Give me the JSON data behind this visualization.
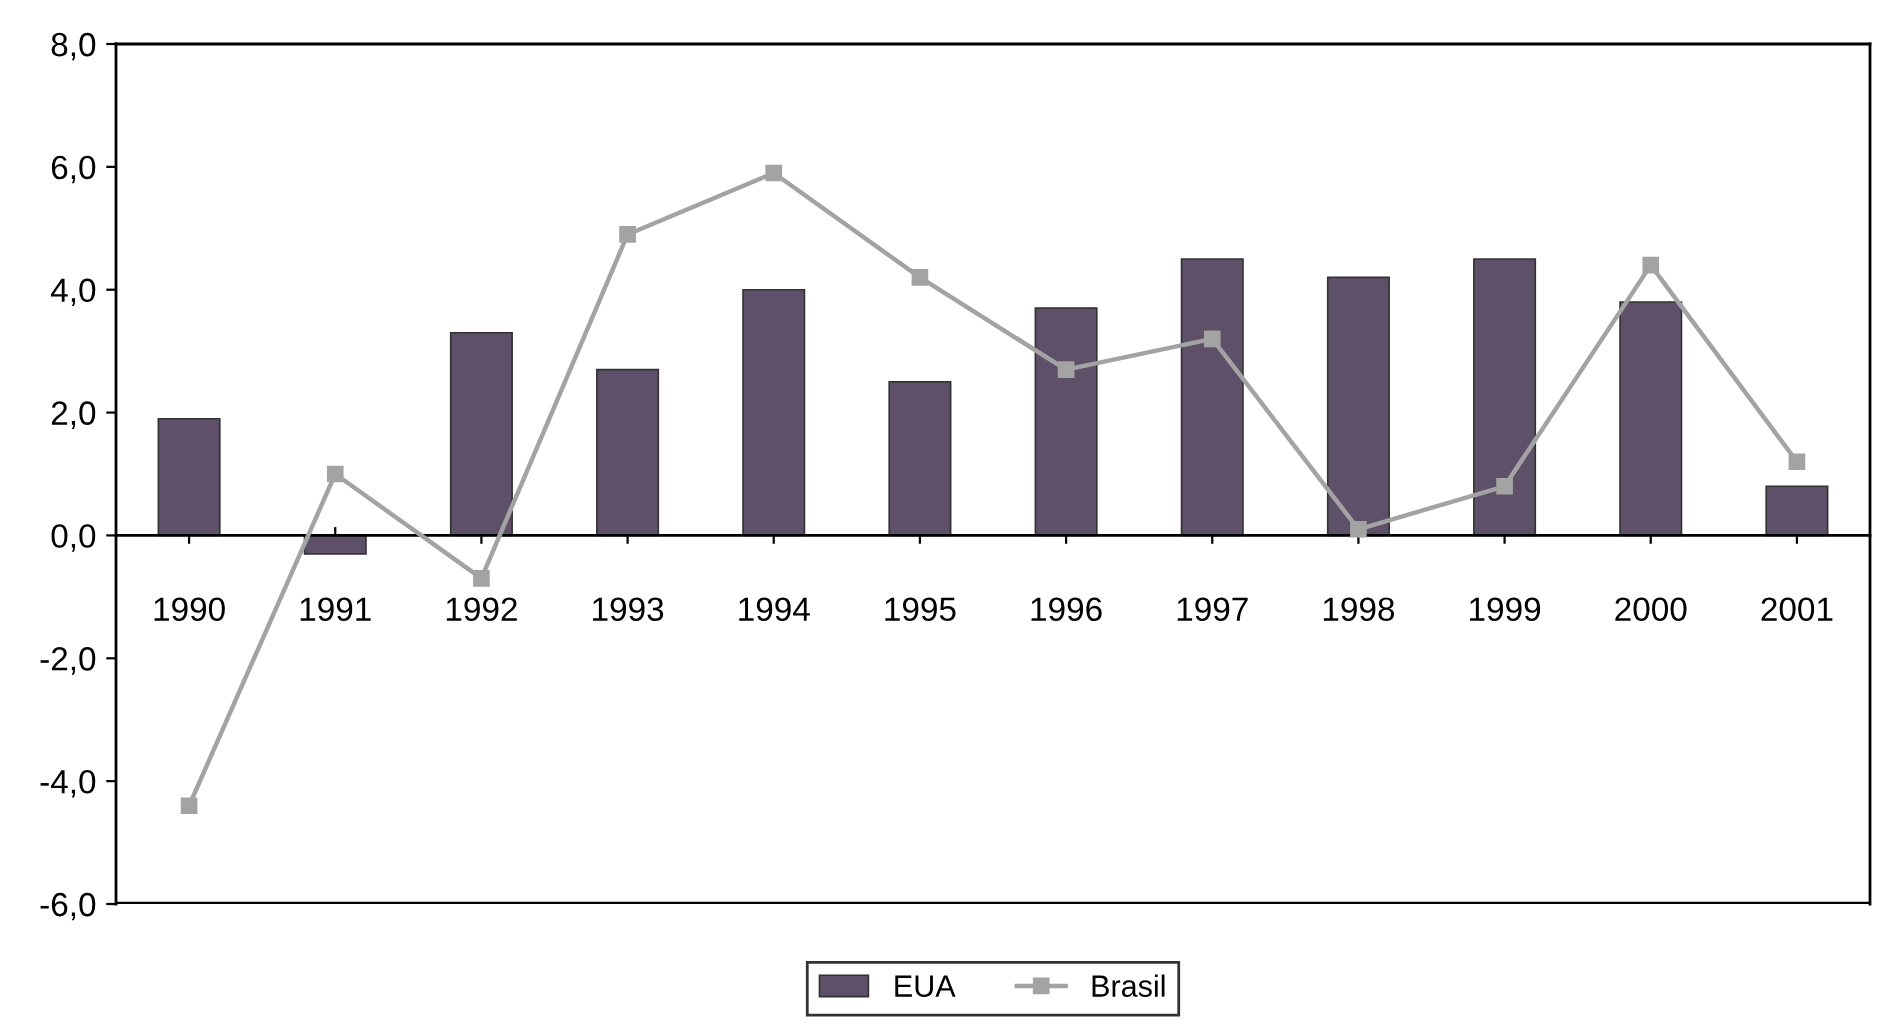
{
  "chart_data": {
    "type": "bar",
    "categories": [
      "1990",
      "1991",
      "1992",
      "1993",
      "1994",
      "1995",
      "1996",
      "1997",
      "1998",
      "1999",
      "2000",
      "2001"
    ],
    "series": [
      {
        "name": "EUA",
        "color": "#5e5068",
        "values": [
          1.9,
          -0.3,
          3.3,
          2.7,
          4.0,
          2.5,
          3.7,
          4.5,
          4.2,
          4.5,
          3.8,
          0.8
        ]
      },
      {
        "name": "Brasil",
        "type": "line",
        "color": "#a3a3a3",
        "values": [
          -4.4,
          1.0,
          -0.7,
          4.9,
          5.9,
          4.2,
          2.7,
          3.2,
          0.1,
          0.8,
          4.4,
          1.2
        ]
      }
    ],
    "ylim": [
      -6,
      8
    ],
    "yticks": [
      {
        "value": -6,
        "label": "-6,0"
      },
      {
        "value": -4,
        "label": "-4,0"
      },
      {
        "value": -2,
        "label": "-2,0"
      },
      {
        "value": 0,
        "label": "0,0"
      },
      {
        "value": 2,
        "label": "2,0"
      },
      {
        "value": 4,
        "label": "4,0"
      },
      {
        "value": 6,
        "label": "6,0"
      },
      {
        "value": 8,
        "label": "8,0"
      }
    ],
    "legend": "bottom",
    "marker": "square",
    "line_style": "solid"
  }
}
